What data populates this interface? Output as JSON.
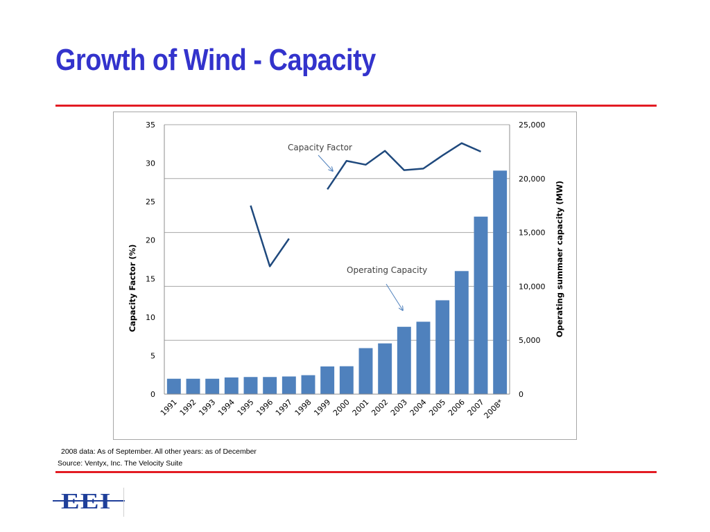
{
  "slide": {
    "title": "Growth of Wind - Capacity",
    "footnote_1": "2008 data: As of September. All other years: as of December",
    "footnote_2": "Source: Ventyx, Inc. The Velocity Suite",
    "logo_text": "EEI"
  },
  "colors": {
    "title": "#3333cc",
    "rule": "#e31b23",
    "bar": "#4f81bd",
    "line": "#1f497d",
    "annotation_arrow": "#4f81bd",
    "gridline": "#a6a6a6",
    "logo": "#1f3f9a"
  },
  "chart_data": {
    "type": "bar",
    "categories": [
      "1991",
      "1992",
      "1993",
      "1994",
      "1995",
      "1996",
      "1997",
      "1998",
      "1999",
      "2000",
      "2001",
      "2002",
      "2003",
      "2004",
      "2005",
      "2006",
      "2007",
      "2008*"
    ],
    "series": [
      {
        "name": "Operating Capacity",
        "type": "bar",
        "axis": "right",
        "values": [
          1430,
          1430,
          1430,
          1550,
          1590,
          1590,
          1640,
          1760,
          2570,
          2590,
          4270,
          4710,
          6250,
          6720,
          8710,
          11420,
          16470,
          20740
        ]
      },
      {
        "name": "Capacity Factor",
        "type": "line",
        "axis": "left",
        "values": [
          null,
          null,
          null,
          null,
          24.5,
          16.6,
          20.2,
          null,
          26.6,
          30.3,
          29.8,
          31.6,
          29.1,
          29.3,
          31.0,
          32.6,
          31.5,
          null
        ]
      }
    ],
    "y_left": {
      "label": "Capacity Factor (%)",
      "range": [
        0,
        35
      ],
      "ticks": [
        "0",
        "5",
        "10",
        "15",
        "20",
        "25",
        "30",
        "35"
      ]
    },
    "y_right": {
      "label": "Operating summaer capacity (MW)",
      "range": [
        0,
        25000
      ],
      "ticks": [
        "0",
        "5,000",
        "10,000",
        "15,000",
        "20,000",
        "25,000"
      ]
    },
    "annotations": [
      "Capacity Factor",
      "Operating Capacity"
    ],
    "grid": true,
    "legend": "none"
  }
}
